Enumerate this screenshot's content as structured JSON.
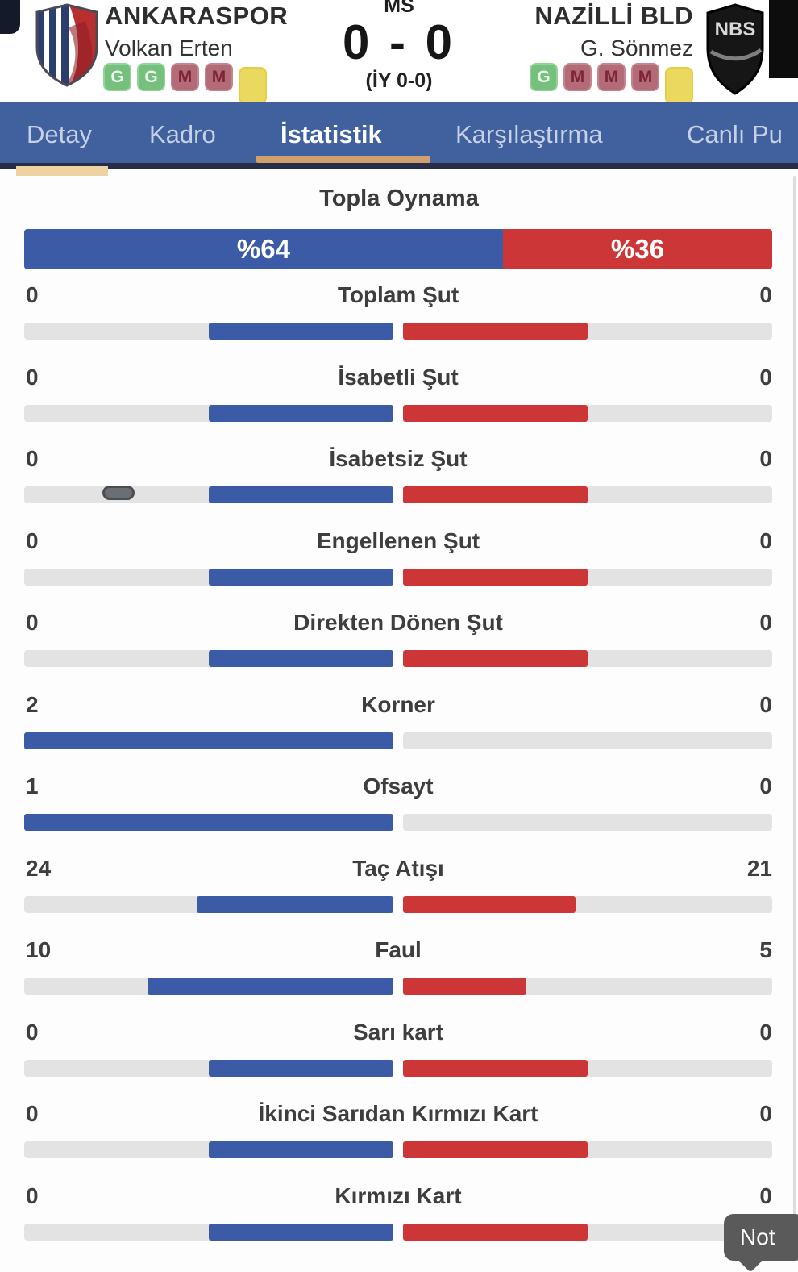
{
  "header": {
    "home": {
      "name": "ANKARASPOR",
      "manager": "Volkan Erten",
      "form": [
        "G",
        "G",
        "M",
        "M",
        ""
      ]
    },
    "away": {
      "name": "NAZİLLİ BLD",
      "manager": "G. Sönmez",
      "form": [
        "G",
        "M",
        "M",
        "M",
        ""
      ],
      "logo_text": "NBS"
    },
    "status_label": "MS",
    "score": "0 - 0",
    "half_time": "(İY 0-0)"
  },
  "tabs": [
    {
      "label": "Detay",
      "active": false
    },
    {
      "label": "Kadro",
      "active": false
    },
    {
      "label": "İstatistik",
      "active": true
    },
    {
      "label": "Karşılaştırma",
      "active": false
    },
    {
      "label": "Canlı Pu",
      "active": false
    }
  ],
  "possession": {
    "title": "Topla Oynama",
    "home_pct": 64,
    "away_pct": 36,
    "home_label": "%64",
    "away_label": "%36"
  },
  "stats": [
    {
      "label": "Toplam Şut",
      "home": 0,
      "away": 0
    },
    {
      "label": "İsabetli Şut",
      "home": 0,
      "away": 0
    },
    {
      "label": "İsabetsiz Şut",
      "home": 0,
      "away": 0
    },
    {
      "label": "Engellenen Şut",
      "home": 0,
      "away": 0
    },
    {
      "label": "Direkten Dönen Şut",
      "home": 0,
      "away": 0
    },
    {
      "label": "Korner",
      "home": 2,
      "away": 0
    },
    {
      "label": "Ofsayt",
      "home": 1,
      "away": 0
    },
    {
      "label": "Taç Atışı",
      "home": 24,
      "away": 21
    },
    {
      "label": "Faul",
      "home": 10,
      "away": 5
    },
    {
      "label": "Sarı kart",
      "home": 0,
      "away": 0
    },
    {
      "label": "İkinci Sarıdan Kırmızı Kart",
      "home": 0,
      "away": 0
    },
    {
      "label": "Kırmızı Kart",
      "home": 0,
      "away": 0
    }
  ],
  "note_bubble": "Not",
  "colors": {
    "home": "#3c5ba6",
    "away": "#cd3637",
    "tab_bar": "#40609e",
    "active_underline": "#cfa06b",
    "bar_track": "#e3e3e3",
    "badge_win": "#74c07c",
    "badge_loss": "#b26b77",
    "badge_blank": "#ead95e"
  }
}
